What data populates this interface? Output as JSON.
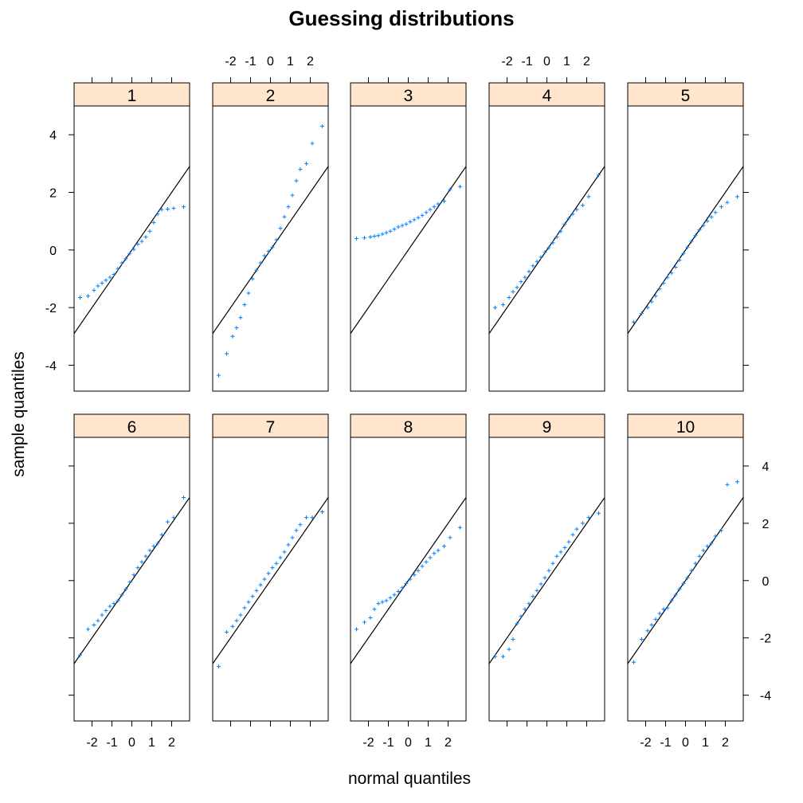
{
  "chart_data": {
    "type": "scatter",
    "title": "Guessing distributions",
    "xlabel": "normal quantiles",
    "ylabel": "sample quantiles",
    "xlim": [
      -2.9,
      2.9
    ],
    "ylim": [
      -4.9,
      5.0
    ],
    "x_ticks": [
      -2,
      -1,
      0,
      1,
      2
    ],
    "y_ticks": [
      -4,
      -2,
      0,
      2,
      4
    ],
    "grid": false,
    "colors": {
      "points": "#0080ff",
      "strip": "#ffe5cc",
      "line": "#000000"
    },
    "panels": [
      {
        "label": "1",
        "intercept": 0,
        "slope": 1,
        "x": [
          -2.6,
          -2.2,
          -1.9,
          -1.7,
          -1.5,
          -1.3,
          -1.1,
          -0.9,
          -0.7,
          -0.5,
          -0.3,
          -0.1,
          0.1,
          0.3,
          0.5,
          0.7,
          0.9,
          1.1,
          1.3,
          1.5,
          1.8,
          2.1,
          2.6
        ],
        "y": [
          -1.65,
          -1.6,
          -1.4,
          -1.25,
          -1.15,
          -1.05,
          -0.95,
          -0.85,
          -0.65,
          -0.45,
          -0.3,
          -0.12,
          0.02,
          0.2,
          0.3,
          0.45,
          0.65,
          0.95,
          1.25,
          1.4,
          1.42,
          1.45,
          1.5
        ]
      },
      {
        "label": "2",
        "intercept": 0,
        "slope": 1,
        "x": [
          -2.6,
          -2.2,
          -1.9,
          -1.7,
          -1.5,
          -1.3,
          -1.1,
          -0.9,
          -0.7,
          -0.5,
          -0.3,
          -0.1,
          0.1,
          0.3,
          0.5,
          0.7,
          0.9,
          1.1,
          1.3,
          1.5,
          1.8,
          2.1,
          2.6
        ],
        "y": [
          -4.35,
          -3.6,
          -3.0,
          -2.7,
          -2.35,
          -1.9,
          -1.5,
          -1.0,
          -0.7,
          -0.45,
          -0.2,
          -0.05,
          0.1,
          0.35,
          0.75,
          1.15,
          1.5,
          1.9,
          2.4,
          2.8,
          3.0,
          3.7,
          4.3
        ]
      },
      {
        "label": "3",
        "intercept": 0,
        "slope": 1,
        "x": [
          -2.6,
          -2.2,
          -1.9,
          -1.7,
          -1.5,
          -1.3,
          -1.1,
          -0.9,
          -0.7,
          -0.5,
          -0.3,
          -0.1,
          0.1,
          0.3,
          0.5,
          0.7,
          0.9,
          1.1,
          1.3,
          1.5,
          1.8,
          2.1,
          2.6
        ],
        "y": [
          0.4,
          0.42,
          0.45,
          0.48,
          0.5,
          0.55,
          0.6,
          0.65,
          0.72,
          0.8,
          0.85,
          0.9,
          0.98,
          1.05,
          1.12,
          1.2,
          1.3,
          1.4,
          1.5,
          1.6,
          1.7,
          2.1,
          2.2
        ]
      },
      {
        "label": "4",
        "intercept": 0,
        "slope": 1,
        "x": [
          -2.6,
          -2.2,
          -1.9,
          -1.7,
          -1.5,
          -1.3,
          -1.1,
          -0.9,
          -0.7,
          -0.5,
          -0.3,
          -0.1,
          0.1,
          0.3,
          0.5,
          0.7,
          0.9,
          1.1,
          1.3,
          1.5,
          1.8,
          2.1,
          2.6
        ],
        "y": [
          -2.0,
          -1.9,
          -1.65,
          -1.45,
          -1.3,
          -1.1,
          -0.95,
          -0.75,
          -0.55,
          -0.4,
          -0.25,
          -0.08,
          0.08,
          0.25,
          0.45,
          0.65,
          0.9,
          1.1,
          1.25,
          1.4,
          1.55,
          1.85,
          2.6
        ]
      },
      {
        "label": "5",
        "intercept": 0,
        "slope": 1,
        "x": [
          -2.6,
          -2.2,
          -1.9,
          -1.7,
          -1.5,
          -1.3,
          -1.1,
          -0.9,
          -0.7,
          -0.5,
          -0.3,
          -0.1,
          0.1,
          0.3,
          0.5,
          0.7,
          0.9,
          1.1,
          1.3,
          1.5,
          1.8,
          2.1,
          2.6
        ],
        "y": [
          -2.5,
          -2.2,
          -2.0,
          -1.8,
          -1.6,
          -1.35,
          -1.15,
          -0.95,
          -0.8,
          -0.6,
          -0.35,
          -0.12,
          0.1,
          0.3,
          0.5,
          0.7,
          0.85,
          1.0,
          1.15,
          1.3,
          1.5,
          1.65,
          1.85
        ]
      },
      {
        "label": "6",
        "intercept": 0,
        "slope": 1,
        "x": [
          -2.6,
          -2.2,
          -1.9,
          -1.7,
          -1.5,
          -1.3,
          -1.1,
          -0.9,
          -0.7,
          -0.5,
          -0.3,
          -0.1,
          0.1,
          0.3,
          0.5,
          0.7,
          0.9,
          1.1,
          1.3,
          1.5,
          1.8,
          2.1,
          2.6
        ],
        "y": [
          -2.6,
          -1.7,
          -1.55,
          -1.4,
          -1.2,
          -1.05,
          -0.9,
          -0.8,
          -0.7,
          -0.5,
          -0.3,
          -0.05,
          0.2,
          0.45,
          0.65,
          0.85,
          1.05,
          1.2,
          1.3,
          1.6,
          2.05,
          2.2,
          2.9
        ]
      },
      {
        "label": "7",
        "intercept": 0,
        "slope": 1,
        "x": [
          -2.6,
          -2.2,
          -1.9,
          -1.7,
          -1.5,
          -1.3,
          -1.1,
          -0.9,
          -0.7,
          -0.5,
          -0.3,
          -0.1,
          0.1,
          0.3,
          0.5,
          0.7,
          0.9,
          1.1,
          1.3,
          1.5,
          1.8,
          2.1,
          2.6
        ],
        "y": [
          -3.0,
          -1.8,
          -1.6,
          -1.4,
          -1.2,
          -0.95,
          -0.75,
          -0.55,
          -0.35,
          -0.15,
          0.05,
          0.25,
          0.45,
          0.6,
          0.8,
          1.0,
          1.25,
          1.5,
          1.75,
          1.95,
          2.2,
          2.2,
          2.4
        ]
      },
      {
        "label": "8",
        "intercept": 0,
        "slope": 1,
        "x": [
          -2.6,
          -2.2,
          -1.9,
          -1.7,
          -1.5,
          -1.3,
          -1.1,
          -0.9,
          -0.7,
          -0.5,
          -0.3,
          -0.1,
          0.1,
          0.3,
          0.5,
          0.7,
          0.9,
          1.1,
          1.3,
          1.5,
          1.8,
          2.1,
          2.6
        ],
        "y": [
          -1.7,
          -1.45,
          -1.3,
          -1.0,
          -0.8,
          -0.75,
          -0.7,
          -0.6,
          -0.5,
          -0.38,
          -0.25,
          -0.1,
          0.05,
          0.2,
          0.35,
          0.5,
          0.65,
          0.8,
          0.95,
          1.05,
          1.2,
          1.5,
          1.85
        ]
      },
      {
        "label": "9",
        "intercept": 0,
        "slope": 1,
        "x": [
          -2.6,
          -2.2,
          -1.9,
          -1.7,
          -1.5,
          -1.3,
          -1.1,
          -0.9,
          -0.7,
          -0.5,
          -0.3,
          -0.1,
          0.1,
          0.3,
          0.5,
          0.7,
          0.9,
          1.1,
          1.3,
          1.5,
          1.8,
          2.1,
          2.6
        ],
        "y": [
          -2.65,
          -2.65,
          -2.4,
          -2.05,
          -1.5,
          -1.25,
          -1.0,
          -0.8,
          -0.55,
          -0.35,
          -0.12,
          0.1,
          0.35,
          0.6,
          0.85,
          1.0,
          1.15,
          1.35,
          1.6,
          1.8,
          2.0,
          2.2,
          2.35
        ]
      },
      {
        "label": "10",
        "intercept": 0,
        "slope": 1,
        "x": [
          -2.6,
          -2.2,
          -1.9,
          -1.7,
          -1.5,
          -1.3,
          -1.1,
          -0.9,
          -0.7,
          -0.5,
          -0.3,
          -0.1,
          0.1,
          0.3,
          0.5,
          0.7,
          0.9,
          1.1,
          1.3,
          1.5,
          1.8,
          2.1,
          2.6
        ],
        "y": [
          -2.85,
          -2.05,
          -1.75,
          -1.55,
          -1.35,
          -1.15,
          -1.0,
          -0.95,
          -0.7,
          -0.5,
          -0.3,
          -0.1,
          0.1,
          0.35,
          0.6,
          0.85,
          1.05,
          1.2,
          1.3,
          1.55,
          1.75,
          3.35,
          3.45
        ]
      }
    ]
  }
}
